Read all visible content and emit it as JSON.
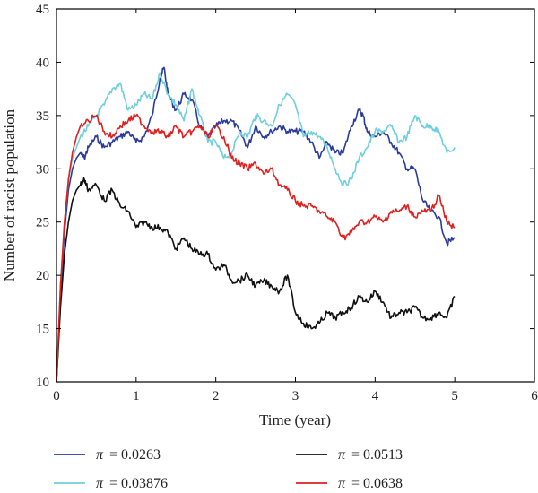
{
  "chart_data": {
    "type": "line",
    "title": "",
    "xlabel": "Time (year)",
    "ylabel": "Number of racist population",
    "xlim": [
      0,
      6
    ],
    "ylim": [
      10,
      45
    ],
    "xticks": [
      0,
      1,
      2,
      3,
      4,
      5,
      6
    ],
    "yticks": [
      10,
      15,
      20,
      25,
      30,
      35,
      40,
      45
    ],
    "grid": false,
    "legend_position": "bottom",
    "series": [
      {
        "name": "π = 0.0263",
        "symbol": "π",
        "value": "= 0.0263",
        "color": "#2b3b9b",
        "x": [
          0,
          0.05,
          0.1,
          0.15,
          0.2,
          0.25,
          0.3,
          0.35,
          0.4,
          0.5,
          0.6,
          0.7,
          0.8,
          0.9,
          1.0,
          1.1,
          1.2,
          1.3,
          1.35,
          1.4,
          1.5,
          1.6,
          1.7,
          1.8,
          1.9,
          2.0,
          2.1,
          2.2,
          2.3,
          2.4,
          2.5,
          2.6,
          2.7,
          2.8,
          2.9,
          3.0,
          3.1,
          3.2,
          3.3,
          3.4,
          3.5,
          3.6,
          3.7,
          3.8,
          3.85,
          3.9,
          4.0,
          4.1,
          4.2,
          4.3,
          4.4,
          4.5,
          4.6,
          4.7,
          4.8,
          4.9,
          5.0
        ],
        "y": [
          10,
          18,
          24,
          28,
          30,
          31,
          31.5,
          31,
          32,
          33,
          32,
          32.5,
          33,
          33.5,
          32.5,
          33,
          35,
          38.5,
          39.5,
          37,
          35.5,
          37,
          36.5,
          34,
          33,
          34,
          34.5,
          34.5,
          33.5,
          32,
          34,
          33,
          33.5,
          34,
          33.5,
          33.5,
          33.5,
          32.5,
          31,
          32.5,
          31.5,
          31.5,
          34,
          35.5,
          35,
          33.5,
          33,
          33.5,
          32.5,
          31.5,
          30,
          30,
          27,
          26,
          25.5,
          23,
          23.5
        ]
      },
      {
        "name": "π = 0.03876",
        "symbol": "π",
        "value": "= 0.03876",
        "color": "#6fcfdc",
        "x": [
          0,
          0.05,
          0.1,
          0.15,
          0.2,
          0.25,
          0.3,
          0.4,
          0.5,
          0.6,
          0.7,
          0.8,
          0.9,
          1.0,
          1.1,
          1.2,
          1.3,
          1.4,
          1.5,
          1.6,
          1.7,
          1.8,
          1.9,
          2.0,
          2.1,
          2.2,
          2.3,
          2.4,
          2.5,
          2.6,
          2.7,
          2.8,
          2.9,
          3.0,
          3.1,
          3.2,
          3.3,
          3.4,
          3.5,
          3.6,
          3.7,
          3.8,
          3.9,
          4.0,
          4.1,
          4.2,
          4.3,
          4.4,
          4.5,
          4.6,
          4.7,
          4.8,
          4.9,
          5.0
        ],
        "y": [
          10,
          19,
          25,
          29,
          31,
          32,
          33,
          34,
          35,
          36,
          37.5,
          38,
          35.5,
          36,
          37,
          36.5,
          39,
          37,
          36,
          34.5,
          37.5,
          35,
          32.5,
          32.5,
          31,
          31.5,
          33.5,
          33,
          35,
          34.5,
          34,
          36,
          37,
          36,
          33,
          33.5,
          33,
          32,
          30,
          28.5,
          29,
          31,
          32,
          33.5,
          33.5,
          34,
          32.5,
          33,
          35,
          34,
          34,
          33.5,
          31.5,
          32
        ]
      },
      {
        "name": "π = 0.0513",
        "symbol": "π",
        "value": "= 0.0513",
        "color": "#111111",
        "x": [
          0,
          0.05,
          0.1,
          0.15,
          0.2,
          0.25,
          0.3,
          0.35,
          0.4,
          0.5,
          0.6,
          0.7,
          0.8,
          0.9,
          1.0,
          1.1,
          1.2,
          1.3,
          1.4,
          1.5,
          1.6,
          1.7,
          1.8,
          1.9,
          2.0,
          2.1,
          2.2,
          2.3,
          2.4,
          2.5,
          2.6,
          2.7,
          2.8,
          2.9,
          3.0,
          3.1,
          3.2,
          3.3,
          3.4,
          3.5,
          3.6,
          3.7,
          3.8,
          3.9,
          4.0,
          4.1,
          4.2,
          4.3,
          4.4,
          4.5,
          4.6,
          4.7,
          4.8,
          4.9,
          5.0
        ],
        "y": [
          10,
          17,
          22,
          25,
          27,
          28,
          28.5,
          29,
          28,
          28.5,
          27,
          28,
          26.5,
          26,
          24.5,
          25,
          24.5,
          24.5,
          24,
          22.5,
          23.5,
          22.5,
          22,
          22,
          20.5,
          21,
          19.5,
          19.5,
          20,
          19,
          19.5,
          19,
          18.5,
          20,
          16.5,
          15.5,
          15,
          15.5,
          16.5,
          16,
          16.5,
          17,
          18,
          17.5,
          18.5,
          17.5,
          16,
          16.5,
          16.5,
          17,
          16,
          16,
          16.5,
          16,
          18
        ]
      },
      {
        "name": "π = 0.0638",
        "symbol": "π",
        "value": "= 0.0638",
        "color": "#e02020",
        "x": [
          0,
          0.05,
          0.1,
          0.15,
          0.2,
          0.25,
          0.3,
          0.4,
          0.5,
          0.6,
          0.7,
          0.8,
          0.9,
          1.0,
          1.1,
          1.2,
          1.3,
          1.4,
          1.5,
          1.6,
          1.7,
          1.8,
          1.9,
          2.0,
          2.1,
          2.2,
          2.3,
          2.4,
          2.5,
          2.6,
          2.7,
          2.8,
          2.9,
          3.0,
          3.1,
          3.2,
          3.3,
          3.4,
          3.5,
          3.6,
          3.7,
          3.8,
          3.9,
          4.0,
          4.1,
          4.2,
          4.3,
          4.4,
          4.5,
          4.6,
          4.7,
          4.8,
          4.9,
          5.0
        ],
        "y": [
          10,
          19,
          25,
          29,
          31.5,
          33,
          34,
          34.5,
          35,
          33.5,
          33,
          34,
          34.5,
          35,
          34,
          33.5,
          33.5,
          33,
          34,
          33,
          33.5,
          34,
          33,
          34,
          33,
          31,
          30.5,
          30,
          30.5,
          29.5,
          30,
          28.5,
          28,
          27,
          26.5,
          26.5,
          26,
          25.5,
          25,
          23.5,
          24,
          25,
          25,
          25.5,
          25,
          26,
          26,
          26.5,
          25.5,
          26,
          26,
          27.5,
          25,
          24.5
        ]
      }
    ]
  }
}
